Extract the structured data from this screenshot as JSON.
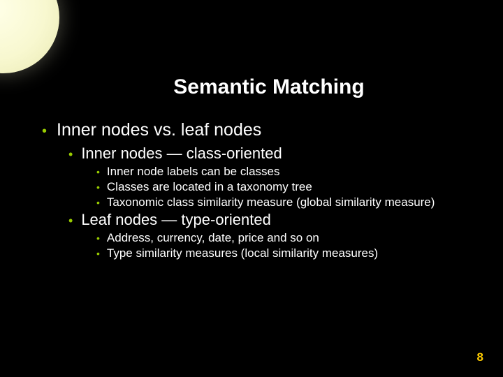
{
  "slide": {
    "title": "Semantic Matching",
    "page_number": "8",
    "background_color": "#000000",
    "title_color": "#ffffff",
    "text_color": "#ffffff",
    "bullet_color": "#99cc00",
    "page_number_color": "#ffcc00",
    "title_fontsize": 30,
    "lvl1_fontsize": 25,
    "lvl2_fontsize": 22,
    "lvl3_fontsize": 17,
    "bullets": {
      "lvl1_a": "Inner nodes vs. leaf nodes",
      "lvl2_a": "Inner nodes — class-oriented",
      "lvl3_a1": "Inner node labels can be classes",
      "lvl3_a2": "Classes are located in a taxonomy tree",
      "lvl3_a3": "Taxonomic class similarity measure (global similarity measure)",
      "lvl2_b": "Leaf nodes — type-oriented",
      "lvl3_b1": "Address, currency, date, price and so on",
      "lvl3_b2": "Type similarity measures (local similarity measures)"
    }
  },
  "decoration": {
    "moon_color": "#f8f8d0"
  }
}
